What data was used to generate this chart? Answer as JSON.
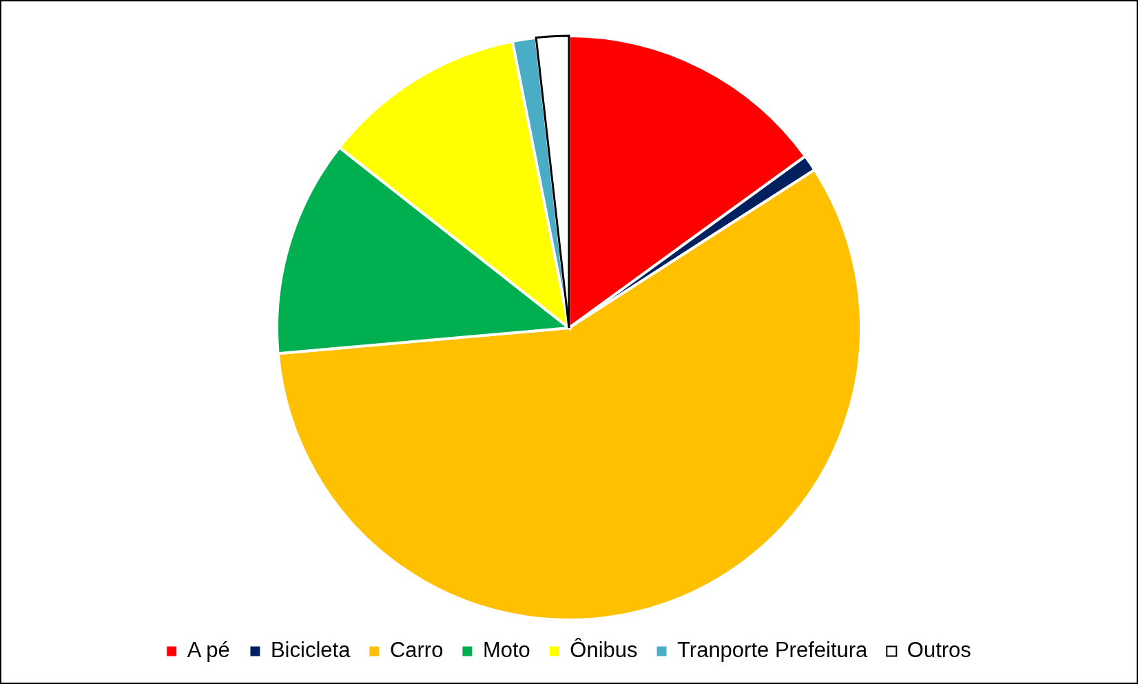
{
  "chart_data": {
    "type": "pie",
    "categories": [
      "A pé",
      "Bicicleta",
      "Carro",
      "Moto",
      "Ônibus",
      "Tranporte Prefeitura",
      "Outros"
    ],
    "values": [
      15.0,
      0.9,
      57.7,
      12.0,
      11.3,
      1.3,
      1.8
    ],
    "colors": [
      "#ff0000",
      "#002060",
      "#ffc000",
      "#00b050",
      "#ffff00",
      "#4bacc6",
      "#ffffff"
    ],
    "legend": "bottom"
  }
}
